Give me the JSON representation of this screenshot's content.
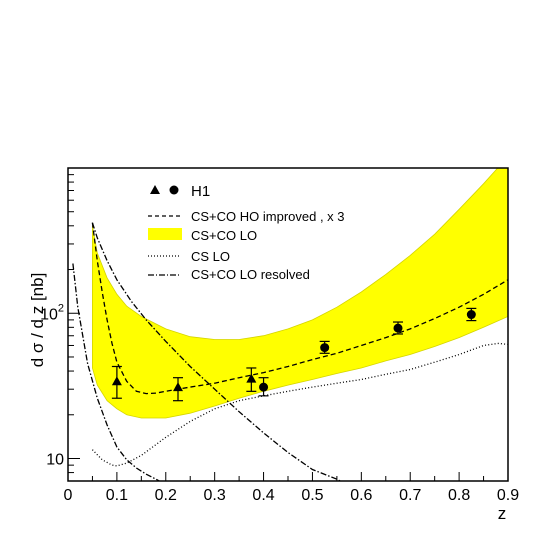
{
  "chart_data": {
    "type": "line",
    "title": "",
    "xlabel": "z",
    "ylabel": "d σ / d z [nb]",
    "xlim": [
      0,
      0.9
    ],
    "ylim": [
      7,
      1000
    ],
    "yscale": "log",
    "x_ticks": [
      "0",
      "0.1",
      "0.2",
      "0.3",
      "0.4",
      "0.5",
      "0.6",
      "0.7",
      "0.8",
      "0.9"
    ],
    "y_ticks": [
      {
        "value": 10,
        "base": "10",
        "exp": ""
      },
      {
        "value": 100,
        "base": "10",
        "exp": "2"
      }
    ],
    "legend": {
      "placement": "top-left",
      "entries": [
        {
          "key": "h1",
          "label": "H1"
        },
        {
          "key": "ho",
          "label": "CS+CO  HO improved , x 3"
        },
        {
          "key": "band",
          "label": "CS+CO LO"
        },
        {
          "key": "cslo",
          "label": "CS LO"
        },
        {
          "key": "resolved",
          "label": "CS+CO LO resolved"
        }
      ]
    },
    "colors": {
      "band": "#ffff00",
      "band_edge": "#d4d400",
      "lines": "#000000"
    },
    "band": {
      "x": [
        0.05,
        0.06,
        0.08,
        0.1,
        0.12,
        0.15,
        0.2,
        0.25,
        0.3,
        0.35,
        0.4,
        0.45,
        0.5,
        0.55,
        0.6,
        0.65,
        0.7,
        0.75,
        0.8,
        0.85,
        0.9
      ],
      "upper": [
        400,
        260,
        175,
        135,
        112,
        95,
        78,
        69,
        66,
        66,
        70,
        78,
        90,
        110,
        140,
        185,
        250,
        350,
        520,
        780,
        1200
      ],
      "lower": [
        42,
        32,
        25,
        22,
        20,
        19,
        19,
        20.5,
        23,
        26,
        29,
        32,
        35,
        38.5,
        42,
        47,
        52,
        59,
        68,
        80,
        95
      ]
    },
    "series": [
      {
        "key": "ho",
        "style": "dashed",
        "x": [
          0.05,
          0.06,
          0.07,
          0.08,
          0.09,
          0.1,
          0.12,
          0.14,
          0.16,
          0.18,
          0.2,
          0.25,
          0.3,
          0.35,
          0.4,
          0.45,
          0.5,
          0.55,
          0.6,
          0.65,
          0.7,
          0.75,
          0.8,
          0.85,
          0.9
        ],
        "y": [
          420,
          230,
          140,
          90,
          62,
          46,
          34,
          29,
          28,
          28.2,
          29,
          31,
          33,
          36,
          39,
          43,
          48,
          53,
          60,
          68,
          78,
          92,
          110,
          135,
          170
        ]
      },
      {
        "key": "cslo",
        "style": "dotted",
        "x": [
          0.05,
          0.07,
          0.09,
          0.1,
          0.12,
          0.15,
          0.2,
          0.25,
          0.3,
          0.35,
          0.4,
          0.45,
          0.5,
          0.55,
          0.6,
          0.65,
          0.7,
          0.75,
          0.8,
          0.85,
          0.88,
          0.9
        ],
        "y": [
          11.5,
          9.8,
          9.0,
          8.9,
          9.3,
          10.5,
          14,
          18,
          22,
          25,
          27,
          29,
          31,
          33,
          35,
          38,
          41,
          46,
          52,
          60,
          62,
          61
        ]
      },
      {
        "key": "resolved",
        "style": "dashdot",
        "x": [
          0.01,
          0.02,
          0.04,
          0.06,
          0.08,
          0.1,
          0.12,
          0.14,
          0.16,
          0.18,
          0.2
        ],
        "y": [
          220,
          110,
          45,
          26,
          17,
          12,
          9.8,
          8.6,
          7.8,
          7.2,
          6.6
        ]
      },
      {
        "key": "resolved_ext",
        "style": "dashdot",
        "x": [
          0.05,
          0.06,
          0.08,
          0.1,
          0.13,
          0.16,
          0.2,
          0.25,
          0.3,
          0.35,
          0.4,
          0.45,
          0.5,
          0.55,
          0.57
        ],
        "y": [
          420,
          330,
          230,
          170,
          120,
          90,
          64,
          43,
          30,
          21,
          15,
          11,
          8.4,
          7.2,
          6.6
        ]
      }
    ],
    "h1_triangles": [
      {
        "x": 0.1,
        "y": 34,
        "yerr_low": 26,
        "yerr_high": 43
      },
      {
        "x": 0.225,
        "y": 31,
        "yerr_low": 25,
        "yerr_high": 36
      },
      {
        "x": 0.375,
        "y": 35.5,
        "yerr_low": 29,
        "yerr_high": 42
      }
    ],
    "h1_circles": [
      {
        "x": 0.4,
        "y": 31,
        "yerr_low": 27,
        "yerr_high": 36
      },
      {
        "x": 0.525,
        "y": 58,
        "yerr_low": 53,
        "yerr_high": 64
      },
      {
        "x": 0.675,
        "y": 79,
        "yerr_low": 72,
        "yerr_high": 87
      },
      {
        "x": 0.825,
        "y": 98,
        "yerr_low": 89,
        "yerr_high": 108
      }
    ]
  }
}
